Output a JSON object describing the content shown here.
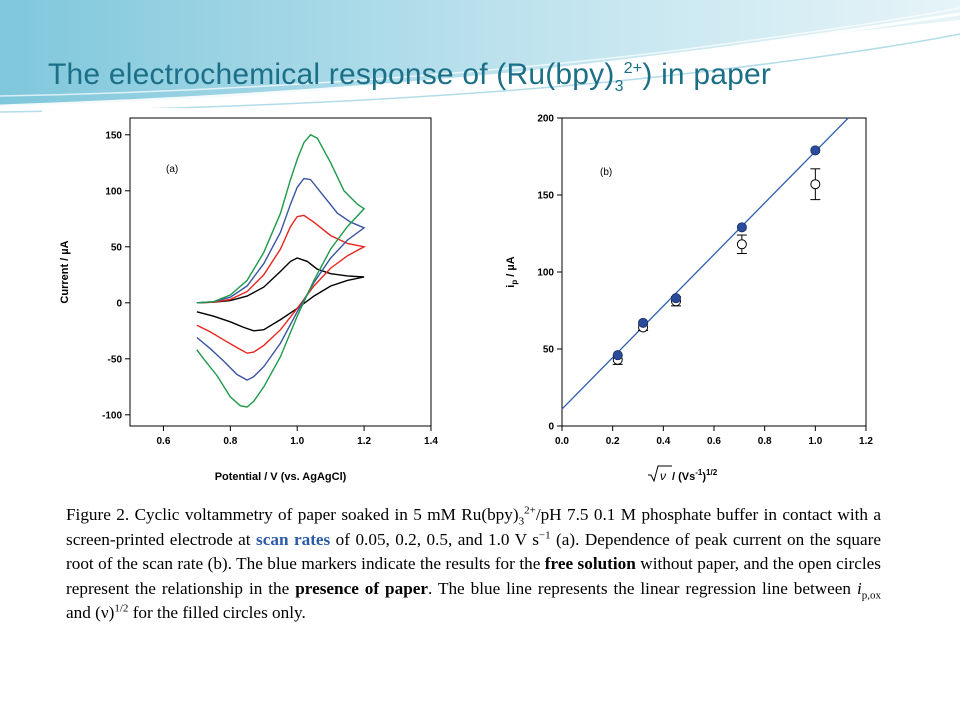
{
  "slide": {
    "title_main": "The electrochemical response of (Ru(bpy)",
    "title_sub": "3",
    "title_sup": "2+",
    "title_end": ") in paper"
  },
  "caption": {
    "p1": "Figure 2. Cyclic voltammetry of paper soaked in 5 mM Ru(bpy)",
    "sub1": "3",
    "sup1": "2+",
    "p2": "/pH 7.5 0.1 M phosphate buffer in contact with a screen-printed electrode at ",
    "hl1": "scan rates",
    "p3": " of 0.05, 0.2, 0.5, and 1.0 V s",
    "sup2": "−1",
    "p4": " (a). Dependence of peak current on the square root of the scan rate (b). The blue markers indicate the results for the ",
    "b1": "free solution",
    "p5": " without paper, and the open circles represent the relationship in the ",
    "b2": "presence of paper",
    "p6": ". The blue line represents the linear regression line between ",
    "ital": "i",
    "sub2": "p,ox",
    "p7": " and (ν)",
    "sup3": "1/2",
    "p8": " for the filled circles only."
  },
  "colors": {
    "title": "#1b6f86",
    "black_trace": "#000000",
    "red_trace": "#e8261f",
    "blue_trace": "#3a55a0",
    "green_trace": "#1e9a4a",
    "marker_fill": "#2a4b9b",
    "fit_line": "#2f5fae"
  },
  "chart_data": [
    {
      "type": "line",
      "panel_label": "(a)",
      "xlabel": "Potential / V (vs. AgAgCl)",
      "ylabel": "Current / µA",
      "xlim": [
        0.5,
        1.4
      ],
      "ylim": [
        -110,
        165
      ],
      "xticks": [
        0.6,
        0.8,
        1.0,
        1.2,
        1.4
      ],
      "yticks": [
        -100,
        -50,
        0,
        50,
        100,
        150
      ],
      "grid": false,
      "legend": "none",
      "series": [
        {
          "color": "#000000",
          "forward": [
            [
              0.7,
              0
            ],
            [
              0.75,
              0.5
            ],
            [
              0.8,
              2
            ],
            [
              0.85,
              6
            ],
            [
              0.9,
              14
            ],
            [
              0.95,
              28
            ],
            [
              0.98,
              37
            ],
            [
              1.0,
              40
            ],
            [
              1.03,
              37
            ],
            [
              1.06,
              30
            ],
            [
              1.1,
              26
            ],
            [
              1.15,
              24
            ],
            [
              1.2,
              23
            ]
          ],
          "reverse": [
            [
              1.2,
              23
            ],
            [
              1.15,
              20
            ],
            [
              1.1,
              15
            ],
            [
              1.05,
              6
            ],
            [
              1.0,
              -5
            ],
            [
              0.95,
              -15
            ],
            [
              0.9,
              -24
            ],
            [
              0.87,
              -25
            ],
            [
              0.84,
              -22
            ],
            [
              0.8,
              -17
            ],
            [
              0.75,
              -12
            ],
            [
              0.7,
              -8
            ]
          ]
        },
        {
          "color": "#e8261f",
          "forward": [
            [
              0.7,
              0
            ],
            [
              0.75,
              0.5
            ],
            [
              0.8,
              3
            ],
            [
              0.85,
              10
            ],
            [
              0.9,
              25
            ],
            [
              0.95,
              48
            ],
            [
              0.98,
              68
            ],
            [
              1.0,
              77
            ],
            [
              1.02,
              78
            ],
            [
              1.05,
              72
            ],
            [
              1.1,
              60
            ],
            [
              1.15,
              53
            ],
            [
              1.2,
              50
            ]
          ],
          "reverse": [
            [
              1.2,
              50
            ],
            [
              1.15,
              42
            ],
            [
              1.1,
              31
            ],
            [
              1.05,
              15
            ],
            [
              1.0,
              -5
            ],
            [
              0.95,
              -24
            ],
            [
              0.9,
              -38
            ],
            [
              0.87,
              -44
            ],
            [
              0.85,
              -45
            ],
            [
              0.82,
              -40
            ],
            [
              0.78,
              -33
            ],
            [
              0.74,
              -26
            ],
            [
              0.7,
              -20
            ]
          ]
        },
        {
          "color": "#3a55a0",
          "forward": [
            [
              0.7,
              0
            ],
            [
              0.75,
              1
            ],
            [
              0.8,
              5
            ],
            [
              0.85,
              15
            ],
            [
              0.9,
              35
            ],
            [
              0.95,
              63
            ],
            [
              0.98,
              88
            ],
            [
              1.0,
              103
            ],
            [
              1.02,
              111
            ],
            [
              1.04,
              110
            ],
            [
              1.08,
              95
            ],
            [
              1.12,
              80
            ],
            [
              1.16,
              72
            ],
            [
              1.2,
              67
            ]
          ],
          "reverse": [
            [
              1.2,
              67
            ],
            [
              1.15,
              56
            ],
            [
              1.1,
              40
            ],
            [
              1.05,
              18
            ],
            [
              1.0,
              -8
            ],
            [
              0.95,
              -36
            ],
            [
              0.9,
              -57
            ],
            [
              0.87,
              -66
            ],
            [
              0.85,
              -69
            ],
            [
              0.82,
              -64
            ],
            [
              0.78,
              -52
            ],
            [
              0.74,
              -41
            ],
            [
              0.7,
              -31
            ]
          ]
        },
        {
          "color": "#1e9a4a",
          "forward": [
            [
              0.7,
              0
            ],
            [
              0.75,
              1
            ],
            [
              0.8,
              7
            ],
            [
              0.85,
              20
            ],
            [
              0.9,
              45
            ],
            [
              0.95,
              80
            ],
            [
              0.98,
              110
            ],
            [
              1.0,
              128
            ],
            [
              1.02,
              143
            ],
            [
              1.04,
              150
            ],
            [
              1.06,
              147
            ],
            [
              1.1,
              125
            ],
            [
              1.14,
              100
            ],
            [
              1.18,
              88
            ],
            [
              1.2,
              84
            ]
          ],
          "reverse": [
            [
              1.2,
              84
            ],
            [
              1.15,
              68
            ],
            [
              1.1,
              48
            ],
            [
              1.05,
              20
            ],
            [
              1.0,
              -12
            ],
            [
              0.95,
              -48
            ],
            [
              0.9,
              -75
            ],
            [
              0.87,
              -88
            ],
            [
              0.85,
              -93
            ],
            [
              0.83,
              -92
            ],
            [
              0.8,
              -84
            ],
            [
              0.76,
              -65
            ],
            [
              0.72,
              -50
            ],
            [
              0.7,
              -42
            ]
          ]
        }
      ]
    },
    {
      "type": "scatter",
      "panel_label": "(b)",
      "xlabel": "√ν / (Vs⁻¹)¹ᐟ²",
      "ylabel": "i_p / µA",
      "ylabel_main": "i",
      "ylabel_sub": "p",
      "ylabel_tail": " / µA",
      "xlabel_tail": " / (Vs",
      "xlabel_sup1": "-1",
      "xlabel_close": ")",
      "xlabel_sup2": "1/2",
      "xlim": [
        0.0,
        1.2
      ],
      "ylim": [
        0,
        200
      ],
      "xticks": [
        0.0,
        0.2,
        0.4,
        0.6,
        0.8,
        1.0,
        1.2
      ],
      "yticks": [
        0,
        50,
        100,
        150,
        200
      ],
      "grid": false,
      "legend": "none",
      "x": [
        0.22,
        0.32,
        0.45,
        0.71,
        1.0
      ],
      "series": [
        {
          "marker": "filled",
          "color": "#2a4b9b",
          "values": [
            46,
            67,
            83,
            129,
            179
          ]
        },
        {
          "marker": "open",
          "color": "#000000",
          "values": [
            43,
            64,
            81,
            118,
            157
          ],
          "error": [
            3,
            2,
            3,
            6,
            10
          ]
        }
      ],
      "fit_line": {
        "color": "#2f5fae",
        "x": [
          0.0,
          1.13
        ],
        "y": [
          11,
          200
        ]
      }
    }
  ]
}
